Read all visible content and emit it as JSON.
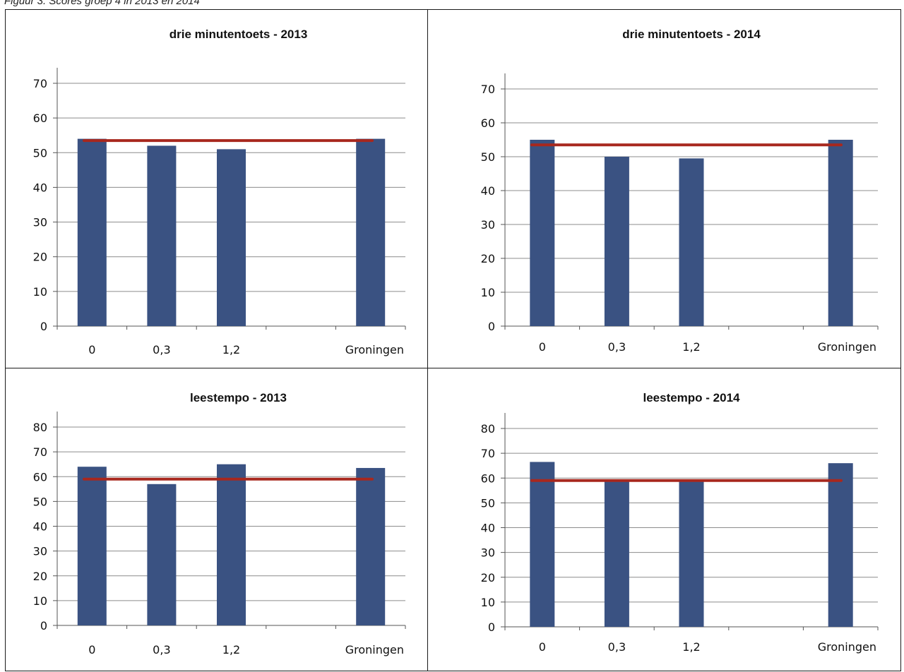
{
  "caption": "Figuur 3. Scores groep 4 in 2013 en 2014",
  "colors": {
    "bar": "#3a5282",
    "reference_line": "#a8281e",
    "grid": "#8c8c8c",
    "axis": "#555555"
  },
  "chart_data": [
    {
      "type": "bar",
      "title": "drie minutentoets - 2013",
      "categories": [
        "0",
        "0,3",
        "1,2",
        "",
        "Groningen"
      ],
      "series": [
        {
          "values": [
            54,
            52,
            51,
            null,
            54
          ]
        }
      ],
      "reference_line": 53.5,
      "ylim": [
        0,
        70
      ],
      "yticks": [
        0,
        10,
        20,
        30,
        40,
        50,
        60,
        70
      ],
      "grid": true,
      "legend": "none"
    },
    {
      "type": "bar",
      "title": "drie minutentoets - 2014",
      "categories": [
        "0",
        "0,3",
        "1,2",
        "",
        "Groningen"
      ],
      "series": [
        {
          "values": [
            55,
            50,
            49.5,
            null,
            55
          ]
        }
      ],
      "reference_line": 53.5,
      "ylim": [
        0,
        70
      ],
      "yticks": [
        0,
        10,
        20,
        30,
        40,
        50,
        60,
        70
      ],
      "grid": true,
      "legend": "none"
    },
    {
      "type": "bar",
      "title": "leestempo - 2013",
      "categories": [
        "0",
        "0,3",
        "1,2",
        "",
        "Groningen"
      ],
      "series": [
        {
          "values": [
            64,
            57,
            65,
            null,
            63.5
          ]
        }
      ],
      "reference_line": 59,
      "ylim": [
        0,
        80
      ],
      "yticks": [
        0,
        10,
        20,
        30,
        40,
        50,
        60,
        70,
        80
      ],
      "grid": true,
      "legend": "none"
    },
    {
      "type": "bar",
      "title": "leestempo - 2014",
      "categories": [
        "0",
        "0,3",
        "1,2",
        "",
        "Groningen"
      ],
      "series": [
        {
          "values": [
            66.5,
            59,
            59,
            null,
            66
          ]
        }
      ],
      "reference_line": 59,
      "ylim": [
        0,
        80
      ],
      "yticks": [
        0,
        10,
        20,
        30,
        40,
        50,
        60,
        70,
        80
      ],
      "grid": true,
      "legend": "none"
    }
  ]
}
